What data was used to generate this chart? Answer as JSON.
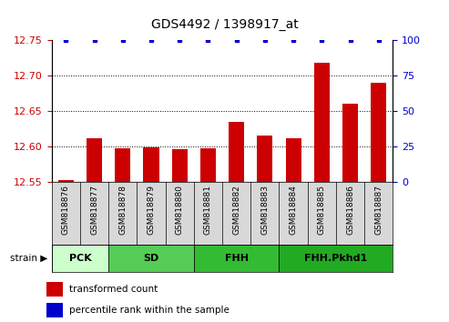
{
  "title": "GDS4492 / 1398917_at",
  "samples": [
    "GSM818876",
    "GSM818877",
    "GSM818878",
    "GSM818879",
    "GSM818880",
    "GSM818881",
    "GSM818882",
    "GSM818883",
    "GSM818884",
    "GSM818885",
    "GSM818886",
    "GSM818887"
  ],
  "red_values": [
    12.552,
    12.612,
    12.597,
    12.599,
    12.596,
    12.598,
    12.635,
    12.615,
    12.612,
    12.718,
    12.66,
    12.69
  ],
  "blue_values": [
    100,
    100,
    100,
    100,
    100,
    100,
    100,
    100,
    100,
    100,
    100,
    100
  ],
  "ylim_left": [
    12.55,
    12.75
  ],
  "ylim_right": [
    0,
    100
  ],
  "yticks_left": [
    12.55,
    12.6,
    12.65,
    12.7,
    12.75
  ],
  "yticks_right": [
    0,
    25,
    50,
    75,
    100
  ],
  "groups": [
    {
      "label": "PCK",
      "start": 0,
      "end": 1,
      "color": "#ccffcc"
    },
    {
      "label": "SD",
      "start": 2,
      "end": 4,
      "color": "#55cc55"
    },
    {
      "label": "FHH",
      "start": 5,
      "end": 7,
      "color": "#33bb33"
    },
    {
      "label": "FHH.Pkhd1",
      "start": 8,
      "end": 11,
      "color": "#22aa22"
    }
  ],
  "bar_color": "#cc0000",
  "dot_color": "#0000cc",
  "strain_label": "strain",
  "legend_red": "transformed count",
  "legend_blue": "percentile rank within the sample",
  "tick_label_color_left": "#cc0000",
  "tick_label_color_right": "#0000cc",
  "xlabel_bg": "#cccccc",
  "group_colors": [
    "#ccffcc",
    "#55cc55",
    "#33bb33",
    "#22aa22"
  ]
}
